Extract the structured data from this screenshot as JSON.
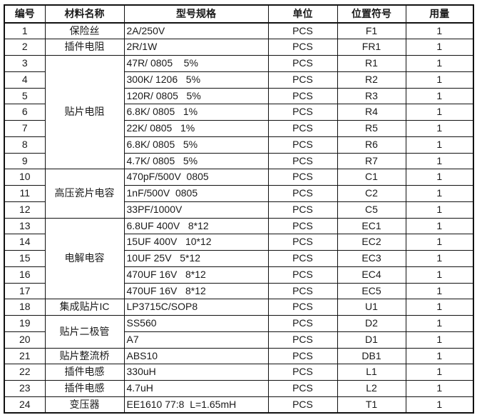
{
  "table": {
    "columns": [
      "编号",
      "材料名称",
      "型号规格",
      "单位",
      "位置符号",
      "用量"
    ],
    "muted_text_color": "#5a5f66",
    "border_color": "#111111",
    "rows": [
      {
        "no": "1",
        "material": {
          "label": "保险丝"
        },
        "spec": "2A/250V",
        "unit": "PCS",
        "ref": "F1",
        "qty": "1"
      },
      {
        "no": "2",
        "material": {
          "label": "插件电阻",
          "muted": true
        },
        "spec": "2R/1W",
        "unit": "PCS",
        "ref": "FR1",
        "qty": "1"
      },
      {
        "no": "3",
        "material": {
          "label": "贴片电阻",
          "rowspan": 7
        },
        "spec": "47R/ 0805    5%",
        "unit": "PCS",
        "ref": "R1",
        "qty": "1"
      },
      {
        "no": "4",
        "spec": "300K/ 1206   5%",
        "unit": "PCS",
        "ref": "R2",
        "qty": "1"
      },
      {
        "no": "5",
        "spec": "120R/ 0805   5%",
        "unit": "PCS",
        "ref": "R3",
        "qty": "1"
      },
      {
        "no": "6",
        "spec": "6.8K/ 0805   1%",
        "unit": "PCS",
        "ref": "R4",
        "qty": "1"
      },
      {
        "no": "7",
        "spec": "22K/ 0805   1%",
        "unit": "PCS",
        "ref": "R5",
        "qty": "1"
      },
      {
        "no": "8",
        "spec": "6.8K/ 0805   5%",
        "unit": "PCS",
        "ref": "R6",
        "qty": "1"
      },
      {
        "no": "9",
        "spec": "4.7K/ 0805   5%",
        "unit": "PCS",
        "ref": "R7",
        "qty": "1"
      },
      {
        "no": "10",
        "material": {
          "label": "高压瓷片电容",
          "rowspan": 3
        },
        "spec": "470pF/500V  0805",
        "unit": "PCS",
        "ref": "C1",
        "qty": "1"
      },
      {
        "no": "11",
        "spec": "1nF/500V  0805",
        "unit": "PCS",
        "ref": "C2",
        "qty": "1"
      },
      {
        "no": "12",
        "spec": "33PF/1000V",
        "unit": "PCS",
        "ref": "C5",
        "qty": "1"
      },
      {
        "no": "13",
        "material": {
          "label": "电解电容",
          "rowspan": 5
        },
        "spec": "6.8UF 400V   8*12",
        "unit": "PCS",
        "ref": "EC1",
        "qty": "1"
      },
      {
        "no": "14",
        "spec": "15UF 400V   10*12",
        "unit": "PCS",
        "ref": "EC2",
        "qty": "1"
      },
      {
        "no": "15",
        "spec": "10UF 25V   5*12",
        "unit": "PCS",
        "ref": "EC3",
        "qty": "1"
      },
      {
        "no": "16",
        "spec": "470UF 16V   8*12",
        "unit": "PCS",
        "ref": "EC4",
        "qty": "1"
      },
      {
        "no": "17",
        "spec": "470UF 16V   8*12",
        "unit": "PCS",
        "ref": "EC5",
        "qty": "1"
      },
      {
        "no": "18",
        "material": {
          "label": "集成贴片IC"
        },
        "spec": "LP3715C/SOP8",
        "unit": "PCS",
        "ref": "U1",
        "qty": "1"
      },
      {
        "no": "19",
        "material": {
          "label": "贴片二极管",
          "rowspan": 2
        },
        "spec": "SS560",
        "unit": "PCS",
        "ref": "D2",
        "qty": "1"
      },
      {
        "no": "20",
        "spec": "A7",
        "unit": "PCS",
        "ref": "D1",
        "qty": "1"
      },
      {
        "no": "21",
        "material": {
          "label": "贴片整流桥"
        },
        "spec": "ABS10",
        "unit": "PCS",
        "ref": "DB1",
        "qty": "1"
      },
      {
        "no": "22",
        "material": {
          "label": "插件电感"
        },
        "spec": "330uH",
        "unit": "PCS",
        "ref": "L1",
        "qty": "1"
      },
      {
        "no": "23",
        "material": {
          "label": "插件电感"
        },
        "spec": "4.7uH",
        "unit": "PCS",
        "ref": "L2",
        "qty": "1"
      },
      {
        "no": "24",
        "material": {
          "label": "变压器"
        },
        "spec": "EE1610 77:8  L=1.65mH",
        "unit": "PCS",
        "ref": "T1",
        "qty": "1"
      }
    ]
  }
}
